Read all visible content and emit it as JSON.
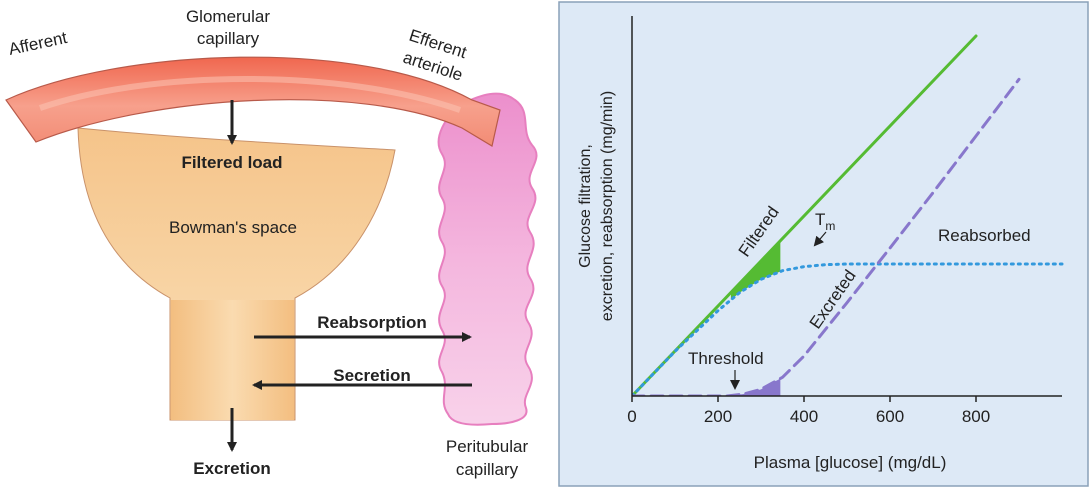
{
  "diagram": {
    "labels": {
      "afferent": "Afferent",
      "glomerular_1": "Glomerular",
      "glomerular_2": "capillary",
      "efferent_1": "Efferent",
      "efferent_2": "arteriole",
      "filtered_load": "Filtered load",
      "bowmans_space": "Bowman's space",
      "reabsorption": "Reabsorption",
      "secretion": "Secretion",
      "excretion": "Excretion",
      "peritubular_1": "Peritubular",
      "peritubular_2": "capillary"
    },
    "colors": {
      "capillary": "#ee6b57",
      "bowman": "#f6c48a",
      "peritubular": "#ef9fd1",
      "arrow": "#222222"
    }
  },
  "chart_data": {
    "type": "line",
    "xlabel": "Plasma [glucose] (mg/dL)",
    "ylabel": "Glucose filtration, excretion, reabsorption (mg/min)",
    "xlim": [
      0,
      1000
    ],
    "ylim": [
      0,
      540
    ],
    "xticks": [
      "0",
      "200",
      "400",
      "600",
      "800"
    ],
    "xtick_values": [
      0,
      200,
      400,
      600,
      800
    ],
    "background": "#dde9f6",
    "series": [
      {
        "name": "Filtered",
        "color": "#55bb33",
        "style": "solid",
        "x": [
          0,
          800
        ],
        "y": [
          0,
          540
        ]
      },
      {
        "name": "Reabsorbed",
        "color": "#3399dd",
        "style": "dotted",
        "x": [
          0,
          100,
          200,
          250,
          300,
          350,
          400,
          450,
          500,
          600,
          700,
          800,
          900,
          1000
        ],
        "y": [
          0,
          67,
          128,
          155,
          175,
          188,
          194,
          197,
          198,
          198,
          198,
          198,
          198,
          198
        ]
      },
      {
        "name": "Excreted",
        "color": "#8877cc",
        "style": "dashed",
        "x": [
          0,
          220,
          260,
          300,
          350,
          400,
          500,
          600,
          700,
          800,
          900
        ],
        "y": [
          0,
          0,
          3,
          10,
          28,
          60,
          140,
          222,
          305,
          390,
          475
        ]
      }
    ],
    "annotations": {
      "tm_main": "T",
      "tm_sub": "m",
      "threshold": "Threshold"
    }
  }
}
